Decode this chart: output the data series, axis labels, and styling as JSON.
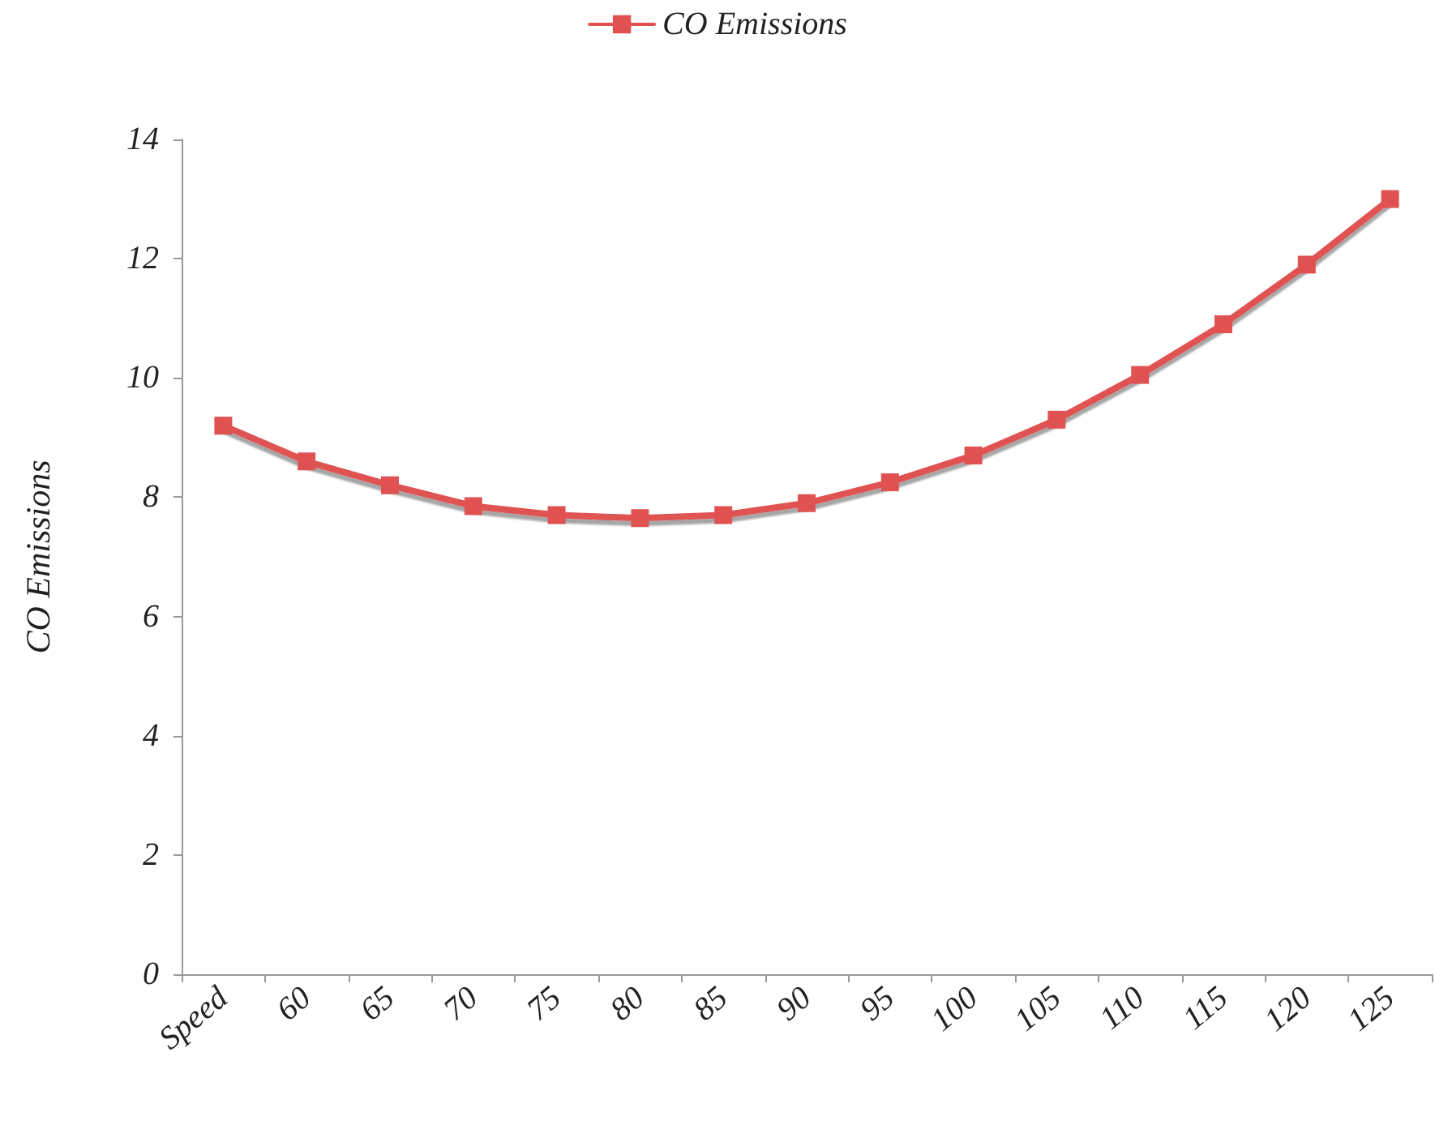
{
  "chart_data": {
    "type": "line",
    "ylabel": "CO Emissions",
    "categories": [
      "Speed",
      "60",
      "65",
      "70",
      "75",
      "80",
      "85",
      "90",
      "95",
      "100",
      "105",
      "110",
      "115",
      "120",
      "125"
    ],
    "series": [
      {
        "name": "CO Emissions",
        "color": "#e05252",
        "values": [
          9.2,
          8.6,
          8.2,
          7.85,
          7.7,
          7.65,
          7.7,
          7.9,
          8.25,
          8.7,
          9.3,
          10.05,
          10.9,
          11.9,
          13.0
        ]
      }
    ],
    "ylim": [
      0,
      14
    ],
    "yticks": [
      0,
      2,
      4,
      6,
      8,
      10,
      12,
      14
    ],
    "grid": false,
    "legend": "top",
    "marker": "square",
    "line_style": "solid"
  }
}
